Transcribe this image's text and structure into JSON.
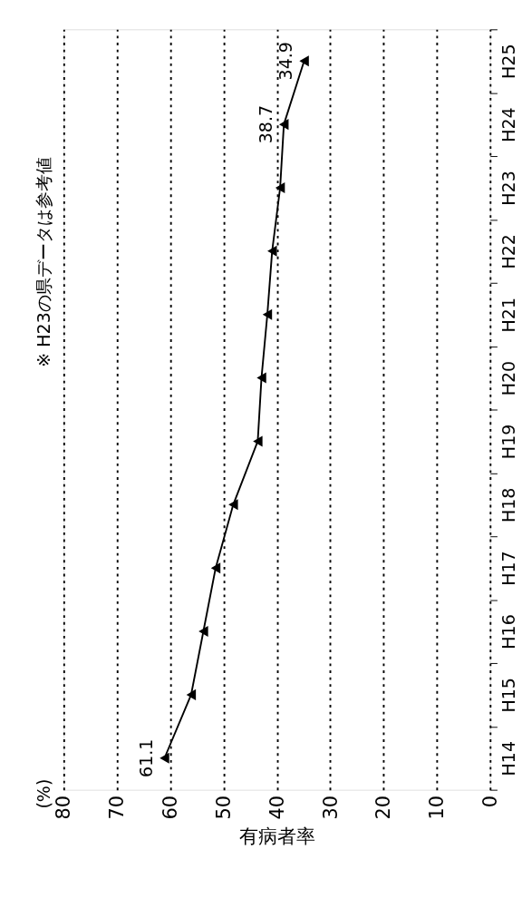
{
  "chart_data": {
    "type": "line",
    "orientation": "horizontal",
    "xlabel": "有病者率",
    "annotations": [
      "(%)",
      "※ H23の県データは参考値"
    ],
    "categories": [
      "H25",
      "H24",
      "H23",
      "H22",
      "H21",
      "H20",
      "H19",
      "H18",
      "H17",
      "H16",
      "H15",
      "H14"
    ],
    "series": [
      {
        "color": "#000000",
        "values": [
          34.9,
          38.7,
          39.4,
          40.9,
          41.8,
          42.9,
          43.6,
          48.2,
          51.5,
          53.8,
          56.1,
          61.1
        ]
      }
    ],
    "value_labels": [
      "34.9",
      "38.7",
      null,
      null,
      null,
      null,
      null,
      null,
      null,
      null,
      null,
      "61.1"
    ],
    "xlim": [
      80,
      0
    ],
    "xticks": [
      80,
      70,
      60,
      50,
      40,
      30,
      20,
      10,
      0
    ],
    "grid": "x",
    "marker": "triangle",
    "line_style": "solid"
  }
}
